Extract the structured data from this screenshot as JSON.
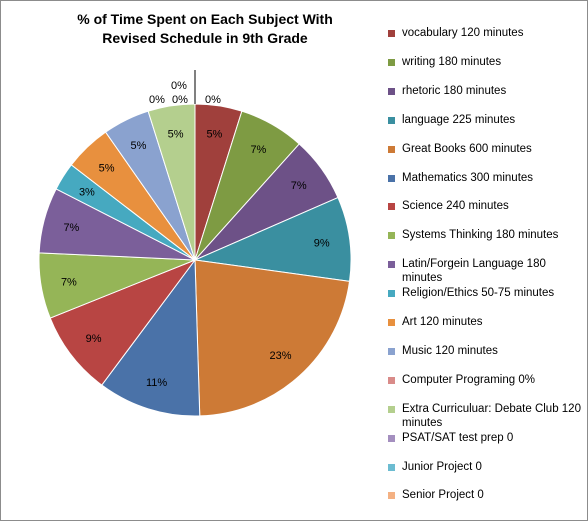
{
  "chart_data": {
    "type": "pie",
    "title": [
      "% of Time Spent on Each Subject With",
      "Revised Schedule in 9th Grade"
    ],
    "legend_position": "right",
    "series": [
      {
        "name": "vocabulary 120 minutes",
        "value": 5,
        "label": "5%",
        "color": "#a0403c"
      },
      {
        "name": "writing 180 minutes",
        "value": 7,
        "label": "7%",
        "color": "#7e9b43"
      },
      {
        "name": "rhetoric 180 minutes",
        "value": 7,
        "label": "7%",
        "color": "#6d5187"
      },
      {
        "name": "language 225 minutes",
        "value": 9,
        "label": "9%",
        "color": "#3a8fa0"
      },
      {
        "name": "Great Books 600 minutes",
        "value": 23,
        "label": "23%",
        "color": "#cd7a36"
      },
      {
        "name": "Mathematics 300 minutes",
        "value": 11,
        "label": "11%",
        "color": "#4a72a8"
      },
      {
        "name": "Science 240 minutes",
        "value": 9,
        "label": "9%",
        "color": "#b84543"
      },
      {
        "name": "Systems Thinking 180 minutes",
        "value": 7,
        "label": "7%",
        "color": "#95b557"
      },
      {
        "name": "Latin/Forgein Language 180 minutes",
        "value": 7,
        "label": "7%",
        "color": "#7b5f9a"
      },
      {
        "name": "Religion/Ethics 50-75 minutes",
        "value": 3,
        "label": "3%",
        "color": "#46a9c0"
      },
      {
        "name": "Art 120 minutes",
        "value": 5,
        "label": "5%",
        "color": "#e8903e"
      },
      {
        "name": "Music 120 minutes",
        "value": 5,
        "label": "5%",
        "color": "#8aa2cf"
      },
      {
        "name": "Computer Programing 0%",
        "value": 0,
        "label": "0%",
        "color": "#d98b89"
      },
      {
        "name": "Extra Curriculuar: Debate Club 120 minutes",
        "value": 5,
        "label": "5%",
        "color": "#b4cf8e"
      },
      {
        "name": "PSAT/SAT test prep 0",
        "value": 0,
        "label": "0%",
        "color": "#a48fbf"
      },
      {
        "name": "Junior Project 0",
        "value": 0,
        "label": "0%",
        "color": "#6cbcd1"
      },
      {
        "name": "Senior Project 0",
        "value": 0,
        "label": "0%",
        "color": "#f4b183"
      }
    ]
  }
}
